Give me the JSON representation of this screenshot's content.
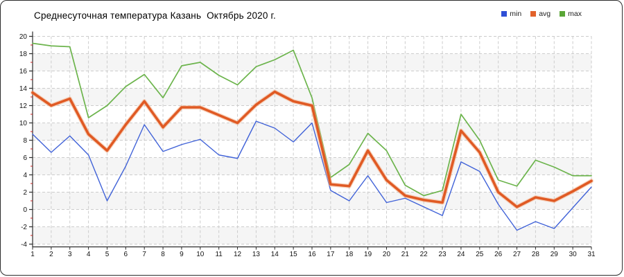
{
  "panel": {
    "title": "Среднесуточная температура Казань  Октябрь 2020 г."
  },
  "legend": {
    "items": [
      {
        "label": "min",
        "color": "#2f4fd6"
      },
      {
        "label": "avg",
        "color": "#e2622b"
      },
      {
        "label": "max",
        "color": "#5aa636"
      }
    ]
  },
  "chart_data": {
    "type": "line",
    "title": "Среднесуточная температура Казань  Октябрь 2020 г.",
    "xlabel": "",
    "ylabel": "",
    "x": [
      1,
      2,
      3,
      4,
      5,
      6,
      7,
      8,
      9,
      10,
      11,
      12,
      13,
      14,
      15,
      16,
      17,
      18,
      19,
      20,
      21,
      22,
      23,
      24,
      25,
      26,
      27,
      28,
      29,
      30,
      31
    ],
    "x_tick_labels": [
      "1",
      "2",
      "3",
      "4",
      "5",
      "6",
      "7",
      "8",
      "9",
      "10",
      "11",
      "12",
      "13",
      "14",
      "15",
      "16",
      "17",
      "18",
      "19",
      "20",
      "21",
      "22",
      "23",
      "24",
      "25",
      "26",
      "27",
      "28",
      "29",
      "30",
      "31"
    ],
    "ylim": [
      -4,
      20
    ],
    "ytick_step": 2,
    "y_tick_labels": [
      "20",
      "18",
      "16",
      "14",
      "12",
      "10",
      "8",
      "6",
      "4",
      "2",
      "0",
      "-2",
      "-4"
    ],
    "grid": true,
    "legend_position": "top-right",
    "series": [
      {
        "name": "min",
        "color": "#4062d8",
        "stroke_width": 1.4,
        "values": [
          8.7,
          6.6,
          8.5,
          6.3,
          1.0,
          5.0,
          9.8,
          6.7,
          7.5,
          8.1,
          6.3,
          5.9,
          10.2,
          9.4,
          7.8,
          10.0,
          2.2,
          1.0,
          3.9,
          0.8,
          1.3,
          0.3,
          -0.7,
          5.5,
          4.4,
          0.6,
          -2.4,
          -1.4,
          -2.2,
          0.2,
          2.6
        ]
      },
      {
        "name": "avg",
        "color": "#e05a24",
        "stroke_width": 3.6,
        "halo_color": "#f3b28c",
        "values": [
          13.5,
          12.0,
          12.8,
          8.7,
          6.8,
          9.8,
          12.5,
          9.5,
          11.8,
          11.8,
          10.9,
          10.0,
          12.1,
          13.6,
          12.5,
          12.0,
          2.9,
          2.7,
          6.8,
          3.4,
          1.6,
          1.1,
          0.8,
          9.1,
          6.6,
          2.0,
          0.3,
          1.4,
          1.0,
          2.1,
          3.3
        ]
      },
      {
        "name": "max",
        "color": "#6cb44c",
        "stroke_width": 1.7,
        "values": [
          19.2,
          18.9,
          18.8,
          10.6,
          12.0,
          14.2,
          15.6,
          12.9,
          16.6,
          17.0,
          15.5,
          14.4,
          16.5,
          17.3,
          18.4,
          12.9,
          3.7,
          5.2,
          8.8,
          6.8,
          2.8,
          1.6,
          2.2,
          11.0,
          8.0,
          3.4,
          2.7,
          5.7,
          4.9,
          3.9,
          3.9
        ]
      }
    ],
    "styles": {
      "grid_color": "#cccccc",
      "axis_color": "#2b2b2b",
      "tick_label_color": "#111111",
      "minor_tick_color": "#cc2222",
      "band_colors": [
        "#ffffff",
        "#f5f5f5"
      ]
    }
  }
}
